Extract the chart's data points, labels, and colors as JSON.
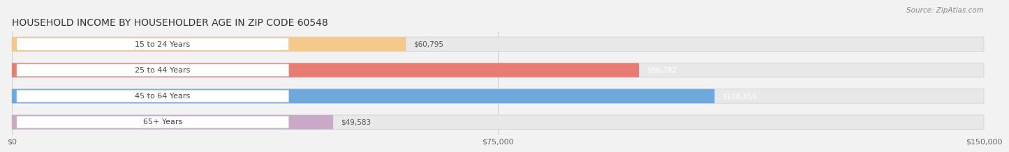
{
  "title": "HOUSEHOLD INCOME BY HOUSEHOLDER AGE IN ZIP CODE 60548",
  "source_text": "Source: ZipAtlas.com",
  "categories": [
    "15 to 24 Years",
    "25 to 44 Years",
    "45 to 64 Years",
    "65+ Years"
  ],
  "values": [
    60795,
    96782,
    108456,
    49583
  ],
  "bar_colors": [
    "#f5c98a",
    "#e87b72",
    "#6fa8dc",
    "#c9a8c8"
  ],
  "value_labels": [
    "$60,795",
    "$96,782",
    "$108,456",
    "$49,583"
  ],
  "value_label_colors": [
    "#555555",
    "#ffffff",
    "#ffffff",
    "#555555"
  ],
  "xlim": [
    0,
    150000
  ],
  "xticks": [
    0,
    75000,
    150000
  ],
  "xticklabels": [
    "$0",
    "$75,000",
    "$150,000"
  ],
  "background_color": "#f2f2f2",
  "bar_bg_color": "#e8e8e8",
  "bar_bg_edge_color": "#d8d8d8",
  "label_pill_color": "#ffffff",
  "label_pill_edge_color": "#cccccc",
  "title_fontsize": 10,
  "source_fontsize": 7.5,
  "label_fontsize": 8,
  "value_fontsize": 7.5,
  "tick_fontsize": 8,
  "bar_height": 0.55,
  "bar_gap": 0.15,
  "n_bars": 4
}
